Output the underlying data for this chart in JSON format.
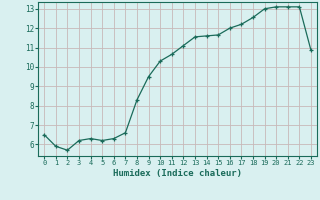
{
  "x": [
    0,
    1,
    2,
    3,
    4,
    5,
    6,
    7,
    8,
    9,
    10,
    11,
    12,
    13,
    14,
    15,
    16,
    17,
    18,
    19,
    20,
    21,
    22,
    23
  ],
  "y": [
    6.5,
    5.9,
    5.7,
    6.2,
    6.3,
    6.2,
    6.3,
    6.6,
    8.3,
    9.5,
    10.3,
    10.65,
    11.1,
    11.55,
    11.6,
    11.65,
    12.0,
    12.2,
    12.55,
    13.0,
    13.1,
    13.1,
    13.1,
    10.85
  ],
  "xlabel": "Humidex (Indice chaleur)",
  "line_color": "#1a6b5a",
  "bg_color": "#d9f0f0",
  "grid_color": "#c8b8b8",
  "text_color": "#1a6b5a",
  "ylim_min": 5.4,
  "ylim_max": 13.35,
  "xlim_min": -0.5,
  "xlim_max": 23.5,
  "yticks": [
    6,
    7,
    8,
    9,
    10,
    11,
    12,
    13
  ],
  "xticks": [
    0,
    1,
    2,
    3,
    4,
    5,
    6,
    7,
    8,
    9,
    10,
    11,
    12,
    13,
    14,
    15,
    16,
    17,
    18,
    19,
    20,
    21,
    22,
    23
  ]
}
